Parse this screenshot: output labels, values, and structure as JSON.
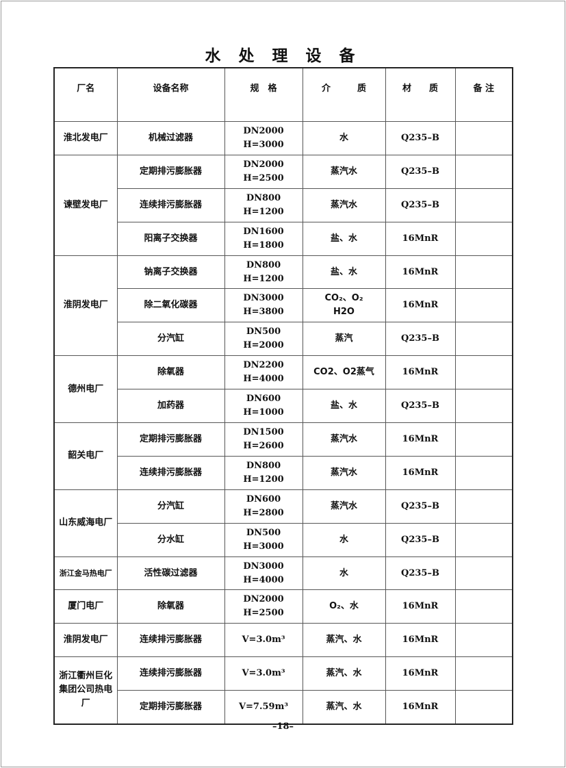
{
  "title": "水 处 理 设 备",
  "headers": [
    "厂名",
    "设备名称",
    "规　格",
    "介　　　质",
    "材　　质",
    "备 注"
  ],
  "groups": [
    {
      "factory": "淮北发电厂",
      "rows": [
        {
          "equipment": "机械过滤器",
          "spec": [
            "DN2000",
            "H=3000"
          ],
          "medium": [
            "水"
          ],
          "material": "Q235–B",
          "note": ""
        }
      ]
    },
    {
      "factory": "谏壁发电厂",
      "rows": [
        {
          "equipment": "定期排污膨胀器",
          "spec": [
            "DN2000",
            "H=2500"
          ],
          "medium": [
            "蒸汽水"
          ],
          "material": "Q235–B",
          "note": ""
        },
        {
          "equipment": "连续排污膨胀器",
          "spec": [
            "DN800",
            "H=1200"
          ],
          "medium": [
            "蒸汽水"
          ],
          "material": "Q235–B",
          "note": ""
        },
        {
          "equipment": "阳离子交换器",
          "spec": [
            "DN1600",
            "H=1800"
          ],
          "medium": [
            "盐、水"
          ],
          "material": "16MnR",
          "note": ""
        }
      ]
    },
    {
      "factory": "淮阴发电厂",
      "rows": [
        {
          "equipment": "钠离子交换器",
          "spec": [
            "DN800",
            "H=1200"
          ],
          "medium": [
            "盐、水"
          ],
          "material": "16MnR",
          "note": ""
        },
        {
          "equipment": "除二氧化碳器",
          "spec": [
            "DN3000",
            "H=3800"
          ],
          "medium": [
            "CO₂、O₂",
            "H2O"
          ],
          "material": "16MnR",
          "note": ""
        },
        {
          "equipment": "分汽缸",
          "spec": [
            "DN500",
            "H=2000"
          ],
          "medium": [
            "蒸汽"
          ],
          "material": "Q235–B",
          "note": ""
        }
      ]
    },
    {
      "factory": "德州电厂",
      "rows": [
        {
          "equipment": "除氧器",
          "spec": [
            "DN2200",
            "H=4000"
          ],
          "medium": [
            "CO2、O2蒸气"
          ],
          "material": "16MnR",
          "note": ""
        },
        {
          "equipment": "加药器",
          "spec": [
            "DN600",
            "H=1000"
          ],
          "medium": [
            "盐、水"
          ],
          "material": "Q235–B",
          "note": ""
        }
      ]
    },
    {
      "factory": "韶关电厂",
      "rows": [
        {
          "equipment": "定期排污膨胀器",
          "spec": [
            "DN1500",
            "H=2600"
          ],
          "medium": [
            "蒸汽水"
          ],
          "material": "16MnR",
          "note": ""
        },
        {
          "equipment": "连续排污膨胀器",
          "spec": [
            "DN800",
            "H=1200"
          ],
          "medium": [
            "蒸汽水"
          ],
          "material": "16MnR",
          "note": ""
        }
      ]
    },
    {
      "factory": "山东威海电厂",
      "rows": [
        {
          "equipment": "分汽缸",
          "spec": [
            "DN600",
            "H=2800"
          ],
          "medium": [
            "蒸汽水"
          ],
          "material": "Q235–B",
          "note": ""
        },
        {
          "equipment": "分水缸",
          "spec": [
            "DN500",
            "H=3000"
          ],
          "medium": [
            "水"
          ],
          "material": "Q235–B",
          "note": ""
        }
      ]
    },
    {
      "factory": "浙江金马热电厂",
      "small": true,
      "rows": [
        {
          "equipment": "活性碳过滤器",
          "spec": [
            "DN3000",
            "H=4000"
          ],
          "medium": [
            "水"
          ],
          "material": "Q235–B",
          "note": ""
        }
      ]
    },
    {
      "factory": "厦门电厂",
      "rows": [
        {
          "equipment": "除氧器",
          "spec": [
            "DN2000",
            "H=2500"
          ],
          "medium": [
            "O₂、水"
          ],
          "material": "16MnR",
          "note": ""
        }
      ]
    },
    {
      "factory": "淮阴发电厂",
      "rows": [
        {
          "equipment": "连续排污膨胀器",
          "spec": [
            "V=3.0m³"
          ],
          "medium": [
            "蒸汽、水"
          ],
          "material": "16MnR",
          "note": ""
        }
      ]
    },
    {
      "factory": "浙江衢州巨化集团公司热电厂",
      "factory_lines": [
        "浙江衢州巨化",
        "集团公司热电厂"
      ],
      "rows": [
        {
          "equipment": "连续排污膨胀器",
          "spec": [
            "V=3.0m³"
          ],
          "medium": [
            "蒸汽、水"
          ],
          "material": "16MnR",
          "note": ""
        },
        {
          "equipment": "定期排污膨胀器",
          "spec": [
            "V=7.59m³"
          ],
          "medium": [
            "蒸汽、水"
          ],
          "material": "16MnR",
          "note": ""
        }
      ]
    }
  ],
  "page_number": "–18–"
}
